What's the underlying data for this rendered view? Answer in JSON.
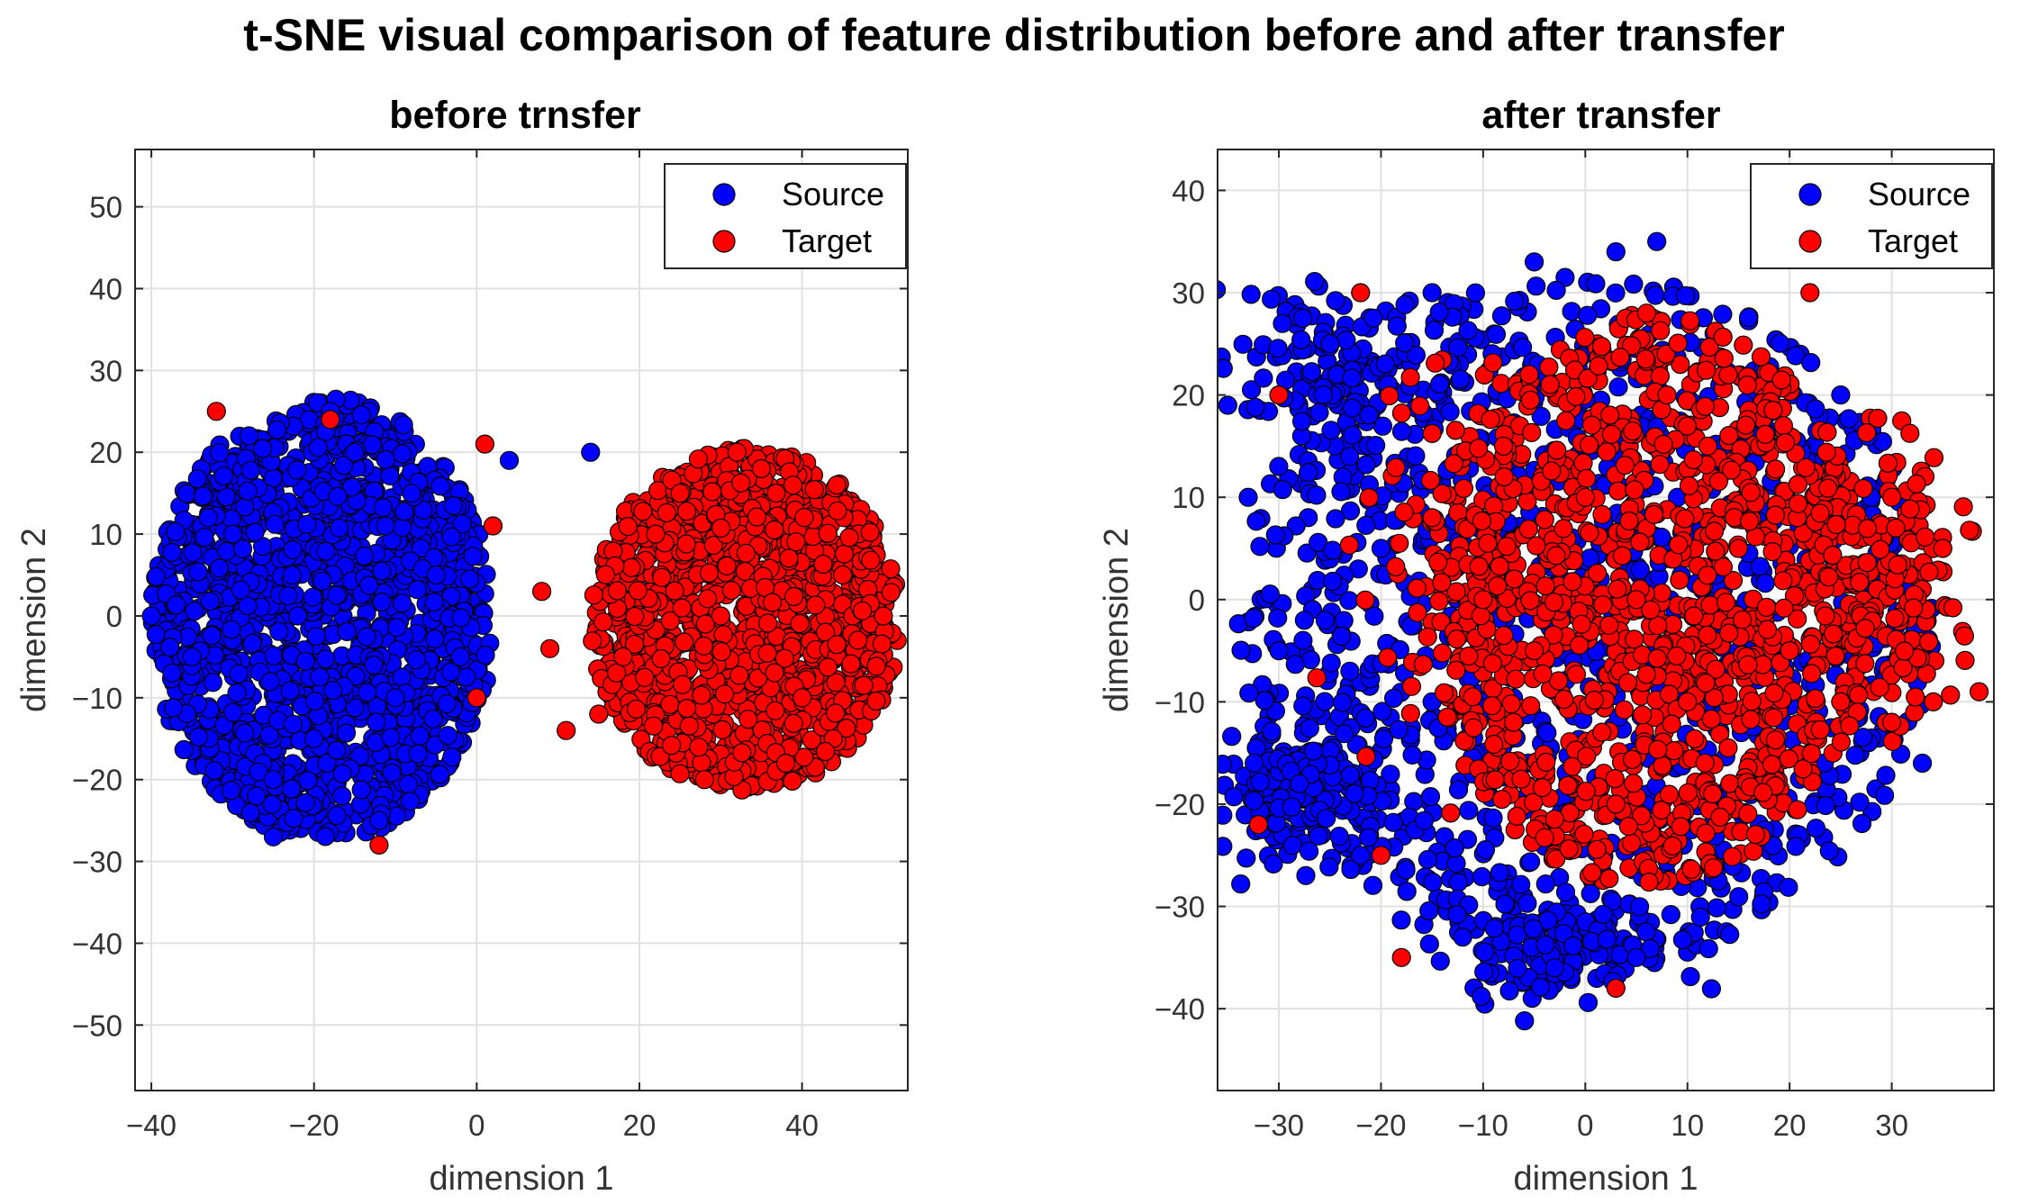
{
  "figure_title": "t-SNE visual comparison of feature distribution before and after transfer",
  "colors": {
    "source": "#0000ff",
    "target": "#ff0000",
    "marker_edge": "#000000",
    "grid": "#e1e1e1",
    "axis": "#262626"
  },
  "chart_data": [
    {
      "type": "scatter",
      "title": "before trnsfer",
      "xlabel": "dimension 1",
      "ylabel": "dimension 2",
      "xlim": [
        -42,
        53
      ],
      "ylim": [
        -58,
        57
      ],
      "xticks": [
        -40,
        -20,
        0,
        20,
        40
      ],
      "yticks": [
        -50,
        -40,
        -30,
        -20,
        -10,
        0,
        10,
        20,
        30,
        40,
        50
      ],
      "grid": true,
      "legend_position": "top-right",
      "series": [
        {
          "name": "Source",
          "color": "#0000ff",
          "description": "dense cluster centered near (-20, 0); x approx -42 to 5, y approx -28 to 28",
          "points": [
            [
              -22,
              0
            ],
            [
              -30,
              10
            ],
            [
              -10,
              -10
            ],
            [
              -25,
              -20
            ],
            [
              -15,
              20
            ],
            [
              -5,
              5
            ],
            [
              -35,
              -5
            ],
            [
              -20,
              -15
            ],
            [
              -8,
              15
            ],
            [
              -28,
              22
            ],
            [
              -40,
              0
            ],
            [
              -12,
              -25
            ],
            [
              -2,
              -5
            ],
            [
              -33,
              12
            ],
            [
              -18,
              25
            ],
            [
              -25,
              -27
            ],
            [
              4,
              19
            ],
            [
              14,
              20
            ]
          ]
        },
        {
          "name": "Target",
          "color": "#ff0000",
          "description": "dense cluster centered near (30, 0); x approx 14 to 53, y approx -23 to 22; a few scattered points near the Source cluster",
          "points": [
            [
              30,
              0
            ],
            [
              22,
              10
            ],
            [
              40,
              -10
            ],
            [
              28,
              -20
            ],
            [
              35,
              18
            ],
            [
              45,
              5
            ],
            [
              18,
              -5
            ],
            [
              25,
              15
            ],
            [
              38,
              -18
            ],
            [
              50,
              0
            ],
            [
              32,
              20
            ],
            [
              15,
              -12
            ],
            [
              8,
              3
            ],
            [
              9,
              -4
            ],
            [
              11,
              -14
            ],
            [
              0,
              -10
            ],
            [
              2,
              11
            ],
            [
              -18,
              24
            ],
            [
              -32,
              25
            ],
            [
              -12,
              -28
            ],
            [
              1,
              21
            ]
          ]
        }
      ]
    },
    {
      "type": "scatter",
      "title": "after transfer",
      "xlabel": "dimension 1",
      "ylabel": "dimension 2",
      "xlim": [
        -36,
        40
      ],
      "ylim": [
        -48,
        44
      ],
      "xticks": [
        -30,
        -20,
        -10,
        0,
        10,
        20,
        30
      ],
      "yticks": [
        -40,
        -30,
        -20,
        -10,
        0,
        10,
        20,
        30,
        40
      ],
      "grid": true,
      "legend_position": "top-right",
      "series": [
        {
          "name": "Source",
          "color": "#0000ff",
          "description": "broad ring-shaped spread x approx -36 to 38, y approx -39 to 35; heavier on left and bottom",
          "points": [
            [
              -30,
              20
            ],
            [
              -25,
              25
            ],
            [
              -15,
              30
            ],
            [
              -5,
              33
            ],
            [
              3,
              34
            ],
            [
              -33,
              10
            ],
            [
              -30,
              -5
            ],
            [
              -28,
              -18
            ],
            [
              -22,
              -25
            ],
            [
              -12,
              -33
            ],
            [
              -3,
              -36
            ],
            [
              5,
              -35
            ],
            [
              12,
              -25
            ],
            [
              22,
              -15
            ],
            [
              28,
              10
            ],
            [
              25,
              20
            ],
            [
              -20,
              5
            ],
            [
              -15,
              -10
            ],
            [
              10,
              -20
            ],
            [
              15,
              -5
            ],
            [
              33,
              -16
            ],
            [
              -35,
              19
            ],
            [
              7,
              35
            ]
          ]
        },
        {
          "name": "Target",
          "color": "#ff0000",
          "description": "dense central cluster around (5, 0) spanning x approx -18 to 38, y approx -38 to 31; scattered points on left",
          "points": [
            [
              5,
              0
            ],
            [
              0,
              10
            ],
            [
              10,
              -10
            ],
            [
              -5,
              -5
            ],
            [
              8,
              20
            ],
            [
              15,
              5
            ],
            [
              3,
              -20
            ],
            [
              -8,
              15
            ],
            [
              20,
              -5
            ],
            [
              12,
              15
            ],
            [
              -10,
              0
            ],
            [
              25,
              -10
            ],
            [
              30,
              10
            ],
            [
              35,
              5
            ],
            [
              -15,
              8
            ],
            [
              -20,
              -25
            ],
            [
              -30,
              20
            ],
            [
              -32,
              -22
            ],
            [
              6,
              28
            ],
            [
              22,
              30
            ],
            [
              -22,
              30
            ],
            [
              -18,
              -35
            ],
            [
              3,
              -38
            ],
            [
              30,
              -12
            ]
          ]
        }
      ]
    }
  ]
}
